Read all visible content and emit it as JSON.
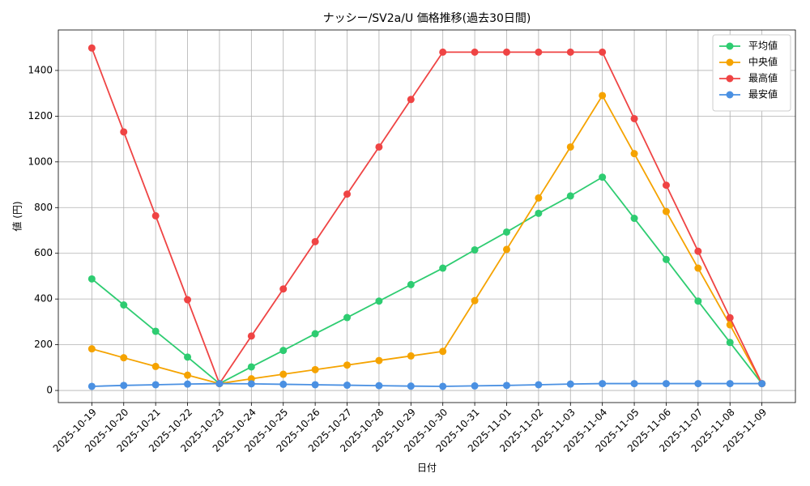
{
  "chart_data": {
    "type": "line",
    "title": "ナッシー/SV2a/U 価格推移(過去30日間)",
    "x_label": "日付",
    "y_label": "値 (円)",
    "categories": [
      "2025-10-19",
      "2025-10-20",
      "2025-10-21",
      "2025-10-22",
      "2025-10-23",
      "2025-10-24",
      "2025-10-25",
      "2025-10-26",
      "2025-10-27",
      "2025-10-28",
      "2025-10-29",
      "2025-10-30",
      "2025-10-31",
      "2025-11-01",
      "2025-11-02",
      "2025-11-03",
      "2025-11-04",
      "2025-11-05",
      "2025-11-06",
      "2025-11-07",
      "2025-11-08",
      "2025-11-09"
    ],
    "series": [
      {
        "name": "平均値",
        "color": "#2ecc71",
        "values": [
          488,
          374,
          259,
          146,
          30,
          103,
          175,
          248,
          319,
          391,
          463,
          535,
          615,
          693,
          775,
          851,
          933,
          753,
          573,
          391,
          210,
          30
        ]
      },
      {
        "name": "中央値",
        "color": "#f5a300",
        "values": [
          182,
          143,
          105,
          67,
          30,
          51,
          71,
          91,
          111,
          131,
          151,
          171,
          393,
          617,
          842,
          1065,
          1290,
          1036,
          783,
          535,
          287,
          30
        ]
      },
      {
        "name": "最高値",
        "color": "#ef4444",
        "values": [
          1498,
          1131,
          764,
          397,
          30,
          238,
          444,
          651,
          859,
          1065,
          1273,
          1480,
          1480,
          1480,
          1480,
          1480,
          1480,
          1189,
          898,
          609,
          318,
          30
        ]
      },
      {
        "name": "最安値",
        "color": "#4a90e2",
        "values": [
          18,
          22,
          25,
          28,
          30,
          29,
          27,
          25,
          23,
          21,
          19,
          18,
          20,
          22,
          25,
          28,
          30,
          30,
          30,
          30,
          30,
          30
        ]
      }
    ],
    "ylim": [
      -53,
      1577
    ],
    "yticks": [
      0,
      200,
      400,
      600,
      800,
      1000,
      1200,
      1400
    ],
    "grid": true,
    "legend": "upper right"
  }
}
